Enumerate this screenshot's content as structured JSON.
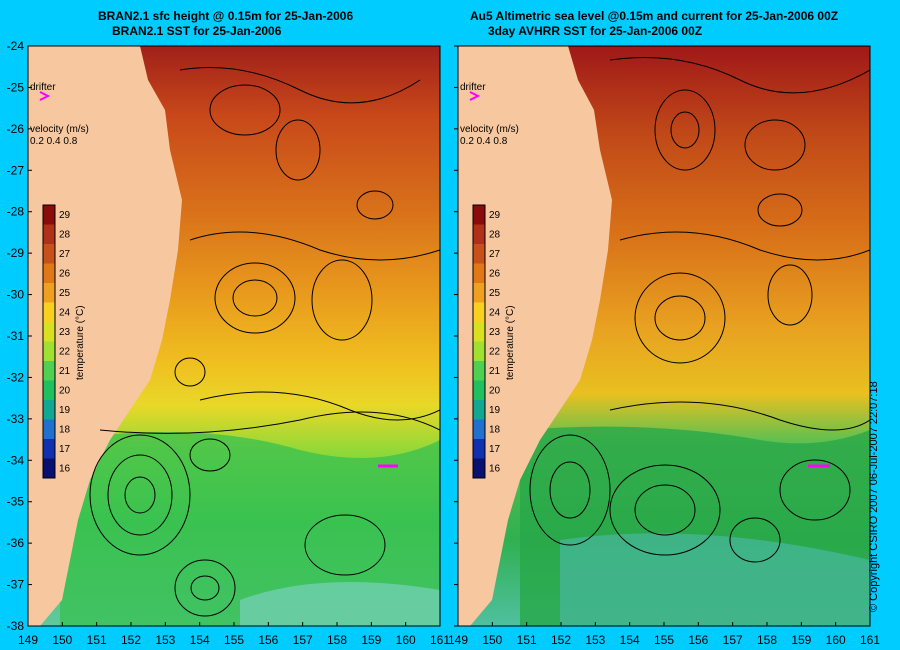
{
  "panels": [
    {
      "id": "left",
      "title_line1": "BRAN2.1 sfc height @ 0.15m for 25-Jan-2006",
      "title_line2": "BRAN2.1 SST for 25-Jan-2006"
    },
    {
      "id": "right",
      "title_line1": "Au5 Altimetric sea level  @0.15m and current for 25-Jan-2006 00Z",
      "title_line2": "3day AVHRR SST for 25-Jan-2006 00Z"
    }
  ],
  "legend": {
    "drifter_label": "drifter",
    "velocity_label": "velocity (m/s)",
    "velocity_scale": "0.2 0.4 0.8",
    "colorbar_label": "temperature (°C)",
    "colorbar_ticks": [
      "29",
      "28",
      "27",
      "26",
      "25",
      "24",
      "23",
      "22",
      "21",
      "20",
      "19",
      "18",
      "17",
      "16"
    ],
    "colorbar_colors": [
      "#8b0a0a",
      "#b0301a",
      "#c8501a",
      "#e07818",
      "#f0a020",
      "#f8d020",
      "#d8e020",
      "#a0e030",
      "#50d050",
      "#20c060",
      "#10a890",
      "#2070d0",
      "#1030b0",
      "#0a1070"
    ]
  },
  "axes": {
    "lat_ticks": [
      "-24",
      "-25",
      "-26",
      "-27",
      "-28",
      "-29",
      "-30",
      "-31",
      "-32",
      "-33",
      "-34",
      "-35",
      "-36",
      "-37",
      "-38"
    ],
    "lon_ticks_left": [
      "149",
      "150",
      "151",
      "152",
      "153",
      "154",
      "155",
      "156",
      "157",
      "158",
      "159",
      "160",
      "161"
    ],
    "lon_ticks_right": [
      "149",
      "150",
      "151",
      "152",
      "153",
      "154",
      "155",
      "156",
      "157",
      "158",
      "159",
      "160",
      "161"
    ]
  },
  "copyright": "© Copyright CSIRO 2007 06-Jul-2007 22:07:18",
  "colors": {
    "background": "#00ccff",
    "land": "#f7c8a0",
    "drifter": "#ff00ff"
  }
}
